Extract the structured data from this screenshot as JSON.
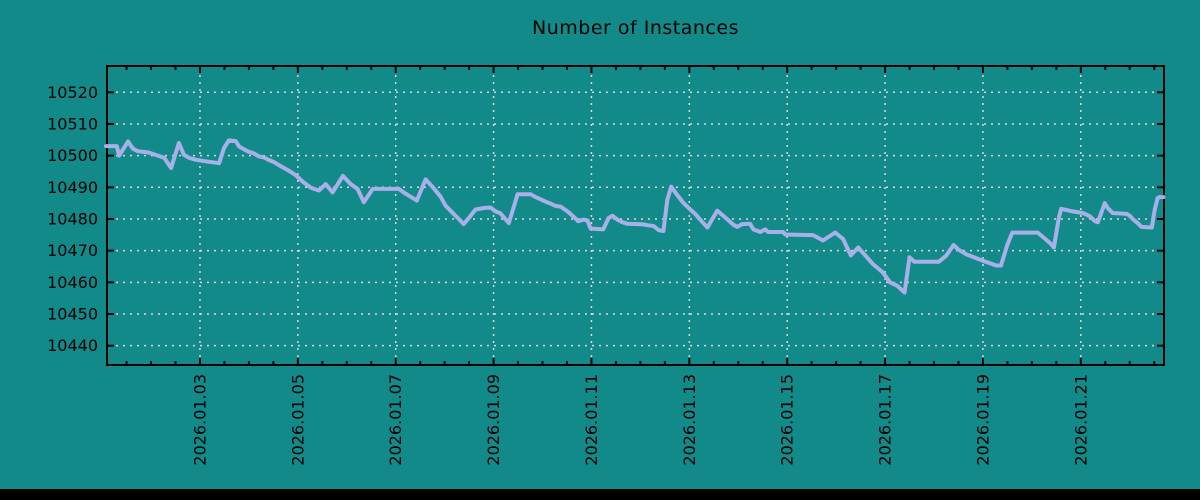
{
  "page": {
    "background": "#128a8a"
  },
  "chart_data": {
    "type": "line",
    "title": "Number of Instances",
    "xlabel": "",
    "ylabel": "",
    "legend": "none",
    "grid": "dotted",
    "x_tick_labels": [
      "2026.01.03",
      "2026.01.05",
      "2026.01.07",
      "2026.01.09",
      "2026.01.11",
      "2026.01.13",
      "2026.01.15",
      "2026.01.17",
      "2026.01.19",
      "2026.01.21"
    ],
    "x_tick_days": [
      3,
      5,
      7,
      9,
      11,
      13,
      15,
      17,
      19,
      21
    ],
    "x_minor_tick_step_days": 0.5,
    "x_domain_days": [
      1.1,
      22.7
    ],
    "y_ticks": [
      10440,
      10450,
      10460,
      10470,
      10480,
      10490,
      10500,
      10510,
      10520
    ],
    "ylim": [
      10433.9,
      10528.3
    ],
    "colors": {
      "background": "#128a8a",
      "line": "#a9b0e8",
      "grid": "#d9d9d9",
      "axis": "#000000",
      "text": "#000000"
    },
    "series": [
      {
        "name": "instances",
        "points": [
          [
            1.08,
            10503.0
          ],
          [
            1.3,
            10503.0
          ],
          [
            1.35,
            10500.0
          ],
          [
            1.53,
            10504.5
          ],
          [
            1.63,
            10502.2
          ],
          [
            1.73,
            10501.4
          ],
          [
            1.95,
            10501.0
          ],
          [
            2.14,
            10500.0
          ],
          [
            2.27,
            10499.3
          ],
          [
            2.41,
            10496.1
          ],
          [
            2.57,
            10504.0
          ],
          [
            2.67,
            10500.3
          ],
          [
            2.78,
            10499.3
          ],
          [
            2.92,
            10498.7
          ],
          [
            3.12,
            10498.2
          ],
          [
            3.39,
            10497.6
          ],
          [
            3.49,
            10502.4
          ],
          [
            3.59,
            10504.8
          ],
          [
            3.73,
            10504.6
          ],
          [
            3.8,
            10502.9
          ],
          [
            3.9,
            10502.0
          ],
          [
            4.0,
            10501.2
          ],
          [
            4.1,
            10500.7
          ],
          [
            4.2,
            10499.8
          ],
          [
            4.31,
            10499.4
          ],
          [
            4.41,
            10498.6
          ],
          [
            4.51,
            10498.0
          ],
          [
            4.61,
            10497.0
          ],
          [
            4.8,
            10495.4
          ],
          [
            4.96,
            10493.8
          ],
          [
            5.1,
            10491.8
          ],
          [
            5.27,
            10489.8
          ],
          [
            5.43,
            10489.0
          ],
          [
            5.57,
            10491.0
          ],
          [
            5.71,
            10488.4
          ],
          [
            5.92,
            10493.6
          ],
          [
            6.08,
            10491.0
          ],
          [
            6.22,
            10489.5
          ],
          [
            6.35,
            10485.3
          ],
          [
            6.53,
            10489.5
          ],
          [
            7.06,
            10489.5
          ],
          [
            7.2,
            10488.0
          ],
          [
            7.43,
            10485.8
          ],
          [
            7.61,
            10492.5
          ],
          [
            7.76,
            10490.0
          ],
          [
            7.92,
            10487.0
          ],
          [
            8.02,
            10484.2
          ],
          [
            8.12,
            10482.6
          ],
          [
            8.29,
            10480.0
          ],
          [
            8.39,
            10478.4
          ],
          [
            8.53,
            10481.0
          ],
          [
            8.63,
            10483.0
          ],
          [
            8.82,
            10483.5
          ],
          [
            8.94,
            10483.6
          ],
          [
            9.04,
            10482.4
          ],
          [
            9.14,
            10481.8
          ],
          [
            9.24,
            10480.0
          ],
          [
            9.31,
            10478.7
          ],
          [
            9.49,
            10487.8
          ],
          [
            9.76,
            10487.8
          ],
          [
            9.86,
            10486.9
          ],
          [
            9.96,
            10486.2
          ],
          [
            10.06,
            10485.5
          ],
          [
            10.16,
            10484.9
          ],
          [
            10.27,
            10484.1
          ],
          [
            10.37,
            10483.9
          ],
          [
            10.51,
            10482.4
          ],
          [
            10.63,
            10480.8
          ],
          [
            10.73,
            10479.3
          ],
          [
            10.84,
            10479.8
          ],
          [
            10.92,
            10479.5
          ],
          [
            10.98,
            10477.0
          ],
          [
            11.24,
            10476.7
          ],
          [
            11.35,
            10480.3
          ],
          [
            11.43,
            10481.0
          ],
          [
            11.53,
            10479.8
          ],
          [
            11.63,
            10479.0
          ],
          [
            11.73,
            10478.5
          ],
          [
            12.06,
            10478.3
          ],
          [
            12.16,
            10478.0
          ],
          [
            12.27,
            10477.8
          ],
          [
            12.37,
            10476.5
          ],
          [
            12.47,
            10476.2
          ],
          [
            12.55,
            10486.0
          ],
          [
            12.63,
            10490.2
          ],
          [
            12.76,
            10487.4
          ],
          [
            12.88,
            10485.0
          ],
          [
            13.02,
            10483.0
          ],
          [
            13.12,
            10481.6
          ],
          [
            13.27,
            10479.0
          ],
          [
            13.37,
            10477.3
          ],
          [
            13.57,
            10482.6
          ],
          [
            13.73,
            10480.5
          ],
          [
            13.9,
            10478.2
          ],
          [
            13.98,
            10477.5
          ],
          [
            14.08,
            10478.4
          ],
          [
            14.24,
            10478.5
          ],
          [
            14.31,
            10476.7
          ],
          [
            14.45,
            10475.9
          ],
          [
            14.55,
            10476.7
          ],
          [
            14.61,
            10475.9
          ],
          [
            14.92,
            10475.9
          ],
          [
            14.96,
            10475.1
          ],
          [
            15.53,
            10474.9
          ],
          [
            15.67,
            10473.7
          ],
          [
            15.73,
            10473.2
          ],
          [
            15.98,
            10475.7
          ],
          [
            16.14,
            10473.7
          ],
          [
            16.3,
            10468.5
          ],
          [
            16.45,
            10471.0
          ],
          [
            16.6,
            10468.4
          ],
          [
            16.75,
            10465.8
          ],
          [
            16.95,
            10463.2
          ],
          [
            17.1,
            10460.0
          ],
          [
            17.25,
            10458.9
          ],
          [
            17.4,
            10456.8
          ],
          [
            17.5,
            10467.9
          ],
          [
            17.6,
            10466.5
          ],
          [
            18.1,
            10466.5
          ],
          [
            18.25,
            10468.4
          ],
          [
            18.4,
            10471.8
          ],
          [
            18.5,
            10470.3
          ],
          [
            18.68,
            10468.7
          ],
          [
            18.85,
            10467.7
          ],
          [
            19.0,
            10466.8
          ],
          [
            19.13,
            10466.1
          ],
          [
            19.27,
            10465.3
          ],
          [
            19.37,
            10465.3
          ],
          [
            19.5,
            10471.9
          ],
          [
            19.6,
            10475.7
          ],
          [
            20.12,
            10475.7
          ],
          [
            20.18,
            10474.9
          ],
          [
            20.29,
            10473.5
          ],
          [
            20.39,
            10472.1
          ],
          [
            20.45,
            10471.0
          ],
          [
            20.55,
            10480.3
          ],
          [
            20.6,
            10483.2
          ],
          [
            20.8,
            10482.5
          ],
          [
            21.04,
            10481.9
          ],
          [
            21.18,
            10480.9
          ],
          [
            21.29,
            10479.3
          ],
          [
            21.35,
            10479.0
          ],
          [
            21.49,
            10485.0
          ],
          [
            21.55,
            10483.5
          ],
          [
            21.65,
            10481.9
          ],
          [
            21.94,
            10481.6
          ],
          [
            22.0,
            10481.0
          ],
          [
            22.06,
            10480.0
          ],
          [
            22.16,
            10478.7
          ],
          [
            22.24,
            10477.5
          ],
          [
            22.45,
            10477.3
          ],
          [
            22.51,
            10482.9
          ],
          [
            22.57,
            10486.6
          ],
          [
            22.61,
            10486.9
          ],
          [
            22.69,
            10486.9
          ]
        ]
      }
    ]
  }
}
